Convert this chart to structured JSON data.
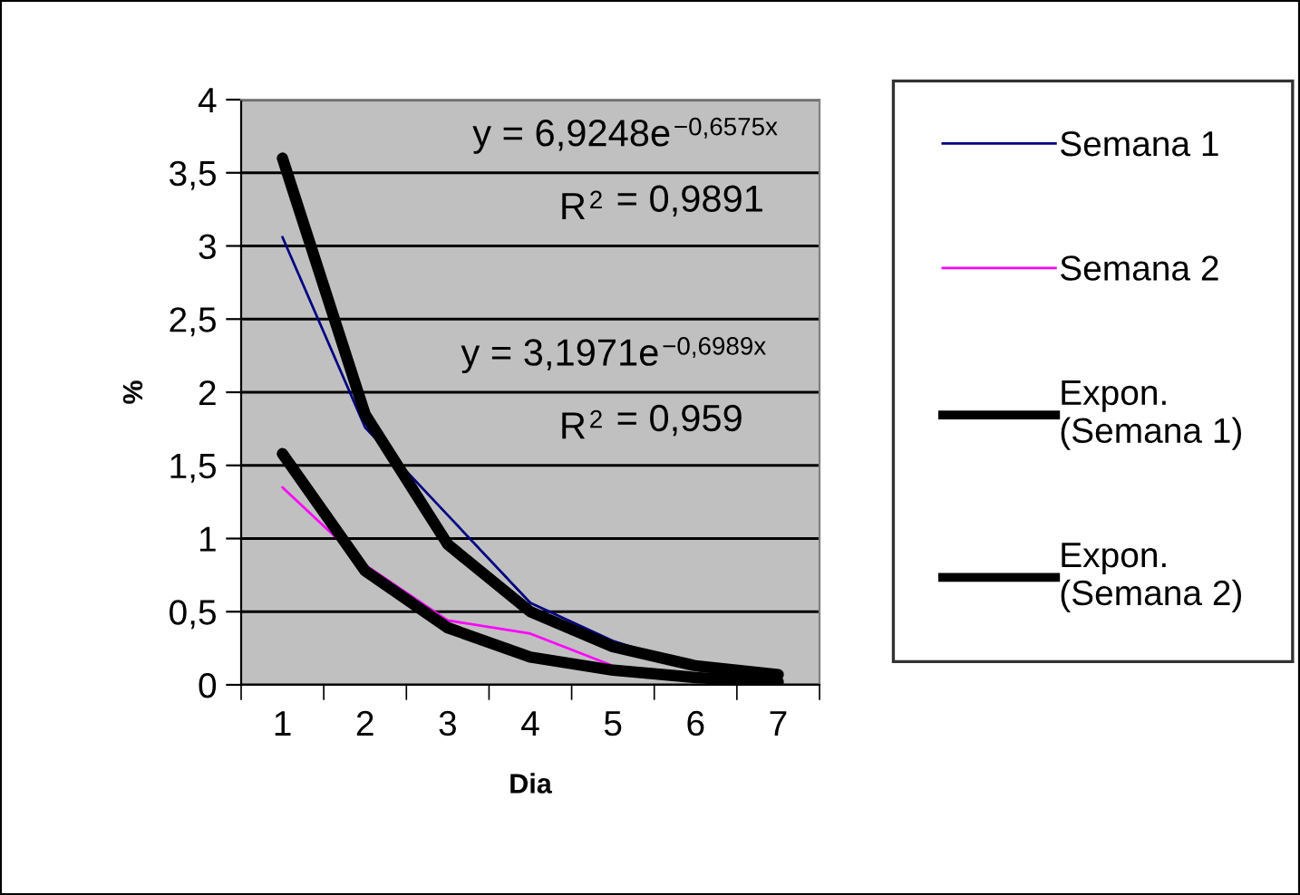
{
  "chart_data": {
    "type": "line",
    "xlabel": "Dia",
    "ylabel": "%",
    "categories": [
      "1",
      "2",
      "3",
      "4",
      "5",
      "6",
      "7"
    ],
    "series": [
      {
        "name": "Semana 1",
        "color": "#000080",
        "values": [
          3.06,
          1.76,
          1.16,
          0.56,
          0.3,
          0.12,
          0.05
        ]
      },
      {
        "name": "Semana 2",
        "color": "#ff00ff",
        "values": [
          1.35,
          0.82,
          0.44,
          0.35,
          0.13,
          null,
          null
        ]
      },
      {
        "name": "Expon.\n(Semana 1)",
        "color": "#000000",
        "values": [
          3.6,
          1.85,
          0.96,
          0.5,
          0.26,
          0.13,
          0.07
        ]
      },
      {
        "name": "Expon.\n(Semana 2)",
        "color": "#000000",
        "values": [
          1.58,
          0.78,
          0.39,
          0.19,
          0.1,
          0.05,
          0.02
        ]
      }
    ],
    "ylim": [
      0,
      4
    ],
    "yticks": [
      0,
      {
        "value": 0.5,
        "label": "0,5"
      },
      1,
      {
        "value": 1.5,
        "label": "1,5"
      },
      2,
      {
        "value": 2.5,
        "label": "2,5"
      },
      3,
      {
        "value": 3.5,
        "label": "3,5"
      },
      4
    ],
    "grid": "y",
    "legend": "right",
    "line_style": "solid",
    "marker": "none",
    "annotations": [
      "y = 6,9248e$^{−0,6575x}$",
      "R$^{2}$ = 0,9891",
      "y = 3,1971e$^{−0,6989x}$",
      "R$^{2}$ = 0,959"
    ]
  }
}
